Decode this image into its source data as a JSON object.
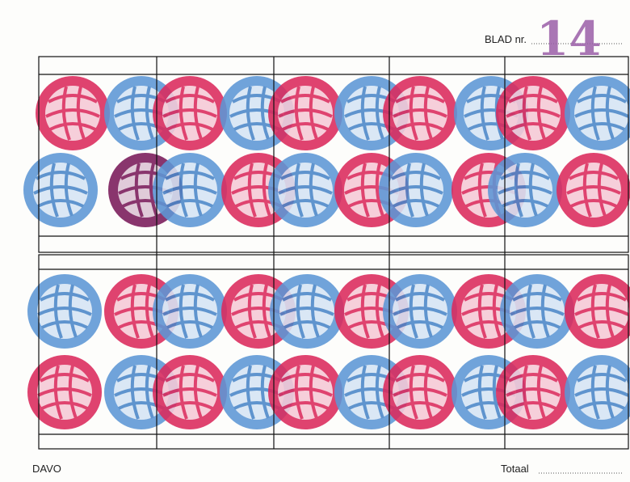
{
  "header": {
    "sheet_label": "BLAD nr.",
    "sheet_number": "14"
  },
  "footer": {
    "brand": "DAVO",
    "total_label": "Totaal"
  }
}
